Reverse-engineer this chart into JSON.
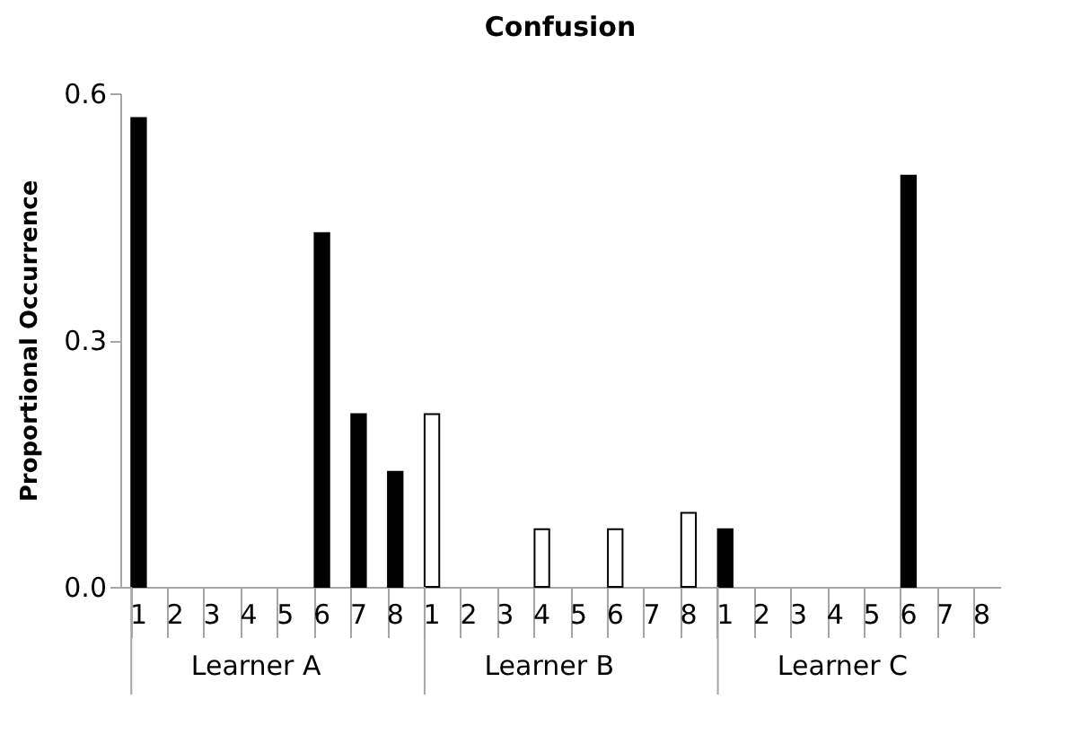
{
  "chart_data": {
    "type": "bar",
    "title": "Confusion",
    "ylabel": "Proportional Occurrence",
    "categories": [
      "1",
      "2",
      "3",
      "4",
      "5",
      "6",
      "7",
      "8",
      "1",
      "2",
      "3",
      "4",
      "5",
      "6",
      "7",
      "8",
      "1",
      "2",
      "3",
      "4",
      "5",
      "6",
      "7",
      "8"
    ],
    "values": [
      0.57,
      0,
      0,
      0,
      0,
      0.43,
      0.21,
      0.14,
      0.21,
      0,
      0,
      0.07,
      0,
      0.07,
      0,
      0.09,
      0.07,
      0,
      0,
      0,
      0,
      0.5,
      0,
      0
    ],
    "colors": [
      "#000000",
      "#000000",
      "#000000",
      "#000000",
      "#000000",
      "#000000",
      "#000000",
      "#000000",
      "#ffffff",
      "#ffffff",
      "#ffffff",
      "#ffffff",
      "#ffffff",
      "#ffffff",
      "#ffffff",
      "#ffffff",
      "#000000",
      "#000000",
      "#000000",
      "#000000",
      "#000000",
      "#000000",
      "#000000",
      "#000000"
    ],
    "annotations": [
      "Learner A",
      "Learner B",
      "Learner C"
    ],
    "ylim": [
      0,
      0.6
    ],
    "yticks": [
      {
        "value": 0,
        "label": "0.0"
      },
      {
        "value": 0.3,
        "label": "0.3"
      },
      {
        "value": 0.6,
        "label": "0.6"
      }
    ],
    "grid": false
  }
}
